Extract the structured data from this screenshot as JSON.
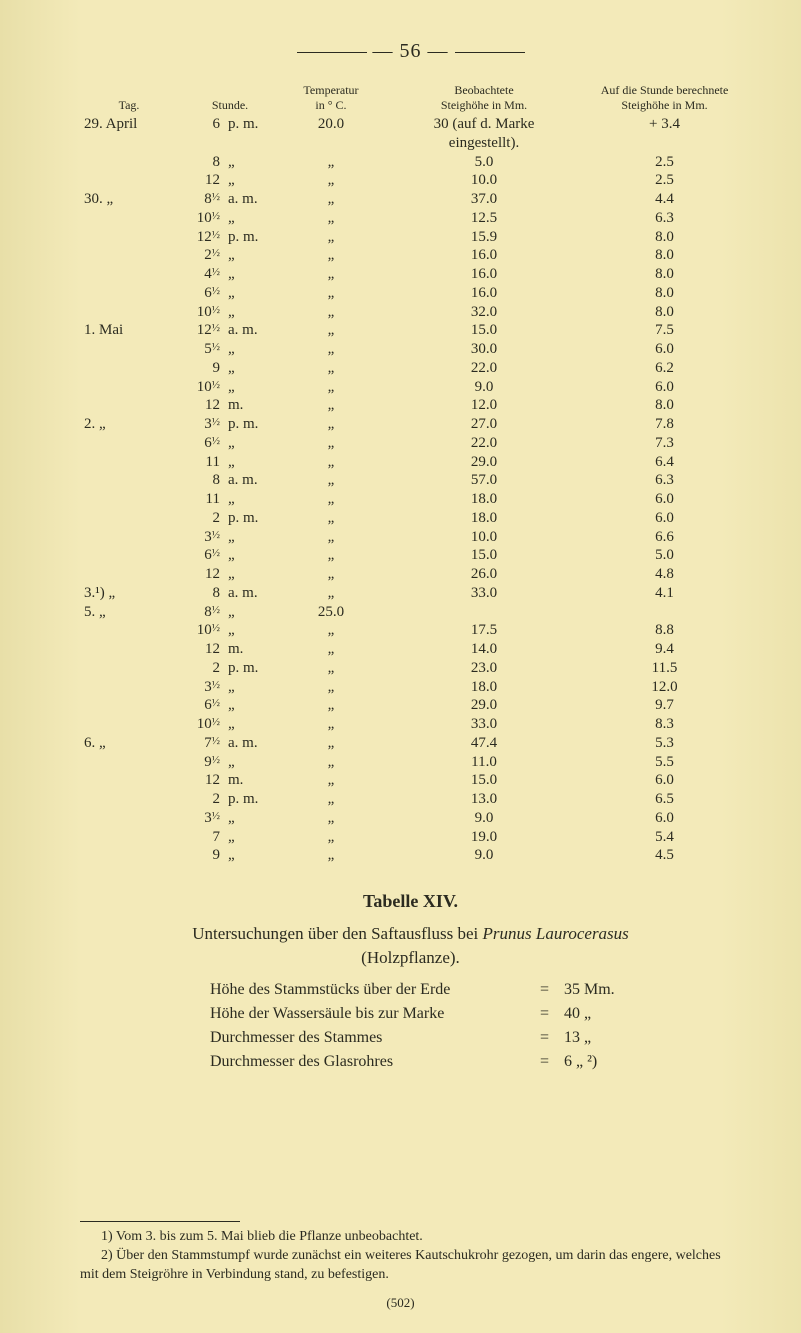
{
  "page_number_line": "—   56   —",
  "headers": {
    "tag": "Tag.",
    "stunde": "Stunde.",
    "temp": "Temperatur\nin ° C.",
    "obs": "Beobachtete\nSteighöhe in Mm.",
    "calc": "Auf die Stunde berechnete\nSteighöhe in Mm."
  },
  "rows": [
    {
      "tag": "29. April",
      "hr": "6",
      "unit": "p. m.",
      "temp": "20.0",
      "obs": "30 (auf d. Marke",
      "calc": "+ 3.4"
    },
    {
      "tag": "",
      "hr": "",
      "unit": "",
      "temp": "",
      "obs": "eingestellt).",
      "calc": ""
    },
    {
      "tag": "",
      "hr": "8",
      "unit": "„",
      "temp": "„",
      "obs": "5.0",
      "calc": "2.5"
    },
    {
      "tag": "",
      "hr": "12",
      "unit": "„",
      "temp": "„",
      "obs": "10.0",
      "calc": "2.5"
    },
    {
      "tag": "30.   „",
      "hr": "8½",
      "unit": "a. m.",
      "temp": "„",
      "obs": "37.0",
      "calc": "4.4"
    },
    {
      "tag": "",
      "hr": "10½",
      "unit": "„",
      "temp": "„",
      "obs": "12.5",
      "calc": "6.3"
    },
    {
      "tag": "",
      "hr": "12½",
      "unit": "p. m.",
      "temp": "„",
      "obs": "15.9",
      "calc": "8.0"
    },
    {
      "tag": "",
      "hr": "2½",
      "unit": "„",
      "temp": "„",
      "obs": "16.0",
      "calc": "8.0"
    },
    {
      "tag": "",
      "hr": "4½",
      "unit": "„",
      "temp": "„",
      "obs": "16.0",
      "calc": "8.0"
    },
    {
      "tag": "",
      "hr": "6½",
      "unit": "„",
      "temp": "„",
      "obs": "16.0",
      "calc": "8.0"
    },
    {
      "tag": "",
      "hr": "10½",
      "unit": "„",
      "temp": "„",
      "obs": "32.0",
      "calc": "8.0"
    },
    {
      "tag": "1. Mai",
      "hr": "12½",
      "unit": "a. m.",
      "temp": "„",
      "obs": "15.0",
      "calc": "7.5"
    },
    {
      "tag": "",
      "hr": "5½",
      "unit": "„",
      "temp": "„",
      "obs": "30.0",
      "calc": "6.0"
    },
    {
      "tag": "",
      "hr": "9",
      "unit": "„",
      "temp": "„",
      "obs": "22.0",
      "calc": "6.2"
    },
    {
      "tag": "",
      "hr": "10½",
      "unit": "„",
      "temp": "„",
      "obs": "9.0",
      "calc": "6.0"
    },
    {
      "tag": "",
      "hr": "12",
      "unit": "m.",
      "temp": "„",
      "obs": "12.0",
      "calc": "8.0"
    },
    {
      "tag": "2.    „",
      "hr": "3½",
      "unit": "p. m.",
      "temp": "„",
      "obs": "27.0",
      "calc": "7.8"
    },
    {
      "tag": "",
      "hr": "6½",
      "unit": "„",
      "temp": "„",
      "obs": "22.0",
      "calc": "7.3"
    },
    {
      "tag": "",
      "hr": "11",
      "unit": "„",
      "temp": "„",
      "obs": "29.0",
      "calc": "6.4"
    },
    {
      "tag": "",
      "hr": "8",
      "unit": "a. m.",
      "temp": "„",
      "obs": "57.0",
      "calc": "6.3"
    },
    {
      "tag": "",
      "hr": "11",
      "unit": "„",
      "temp": "„",
      "obs": "18.0",
      "calc": "6.0"
    },
    {
      "tag": "",
      "hr": "2",
      "unit": "p. m.",
      "temp": "„",
      "obs": "18.0",
      "calc": "6.0"
    },
    {
      "tag": "",
      "hr": "3½",
      "unit": "„",
      "temp": "„",
      "obs": "10.0",
      "calc": "6.6"
    },
    {
      "tag": "",
      "hr": "6½",
      "unit": "„",
      "temp": "„",
      "obs": "15.0",
      "calc": "5.0"
    },
    {
      "tag": "",
      "hr": "12",
      "unit": "„",
      "temp": "„",
      "obs": "26.0",
      "calc": "4.8"
    },
    {
      "tag": "3.¹)  „",
      "hr": "8",
      "unit": "a. m.",
      "temp": "„",
      "obs": "33.0",
      "calc": "4.1"
    },
    {
      "tag": "5.    „",
      "hr": "8½",
      "unit": "„",
      "temp": "25.0",
      "obs": "",
      "calc": ""
    },
    {
      "tag": "",
      "hr": "10½",
      "unit": "„",
      "temp": "„",
      "obs": "17.5",
      "calc": "8.8"
    },
    {
      "tag": "",
      "hr": "12",
      "unit": "m.",
      "temp": "„",
      "obs": "14.0",
      "calc": "9.4"
    },
    {
      "tag": "",
      "hr": "2",
      "unit": "p. m.",
      "temp": "„",
      "obs": "23.0",
      "calc": "11.5"
    },
    {
      "tag": "",
      "hr": "3½",
      "unit": "„",
      "temp": "„",
      "obs": "18.0",
      "calc": "12.0"
    },
    {
      "tag": "",
      "hr": "6½",
      "unit": "„",
      "temp": "„",
      "obs": "29.0",
      "calc": "9.7"
    },
    {
      "tag": "",
      "hr": "10½",
      "unit": "„",
      "temp": "„",
      "obs": "33.0",
      "calc": "8.3"
    },
    {
      "tag": "6.    „",
      "hr": "7½",
      "unit": "a. m.",
      "temp": "„",
      "obs": "47.4",
      "calc": "5.3"
    },
    {
      "tag": "",
      "hr": "9½",
      "unit": "„",
      "temp": "„",
      "obs": "11.0",
      "calc": "5.5"
    },
    {
      "tag": "",
      "hr": "12",
      "unit": "m.",
      "temp": "„",
      "obs": "15.0",
      "calc": "6.0"
    },
    {
      "tag": "",
      "hr": "2",
      "unit": "p. m.",
      "temp": "„",
      "obs": "13.0",
      "calc": "6.5"
    },
    {
      "tag": "",
      "hr": "3½",
      "unit": "„",
      "temp": "„",
      "obs": "9.0",
      "calc": "6.0"
    },
    {
      "tag": "",
      "hr": "7",
      "unit": "„",
      "temp": "„",
      "obs": "19.0",
      "calc": "5.4"
    },
    {
      "tag": "",
      "hr": "9",
      "unit": "„",
      "temp": "„",
      "obs": "9.0",
      "calc": "4.5"
    }
  ],
  "table_title": "Tabelle XIV.",
  "paragraph": "Untersuchungen über den Saftausfluss bei Prunus Laurocerasus (Holzpflanze).",
  "paragraph_plain_prefix": "Untersuchungen über den Saftausfluss bei ",
  "paragraph_italic": "Prunus Laurocerasus",
  "paragraph_suffix_line2": "(Holzpflanze).",
  "specs": [
    {
      "label": "Höhe des Stammstücks über der Erde",
      "val": "35 Mm."
    },
    {
      "label": "Höhe der Wassersäule bis zur Marke",
      "val": "40   „"
    },
    {
      "label": "Durchmesser des Stammes",
      "val": "13   „"
    },
    {
      "label": "Durchmesser des Glasrohres",
      "val": "6   „ ²)"
    }
  ],
  "footnotes": [
    "1) Vom 3. bis zum 5. Mai blieb die Pflanze unbeobachtet.",
    "2) Über den Stammstumpf wurde zunächst ein weiteres Kautschukrohr gezogen, um darin das engere, welches mit dem Steigröhre in Verbindung stand, zu befestigen."
  ],
  "fold_num": "(502)",
  "colors": {
    "bg": "#f2e9b8",
    "text": "#2b2b20"
  }
}
